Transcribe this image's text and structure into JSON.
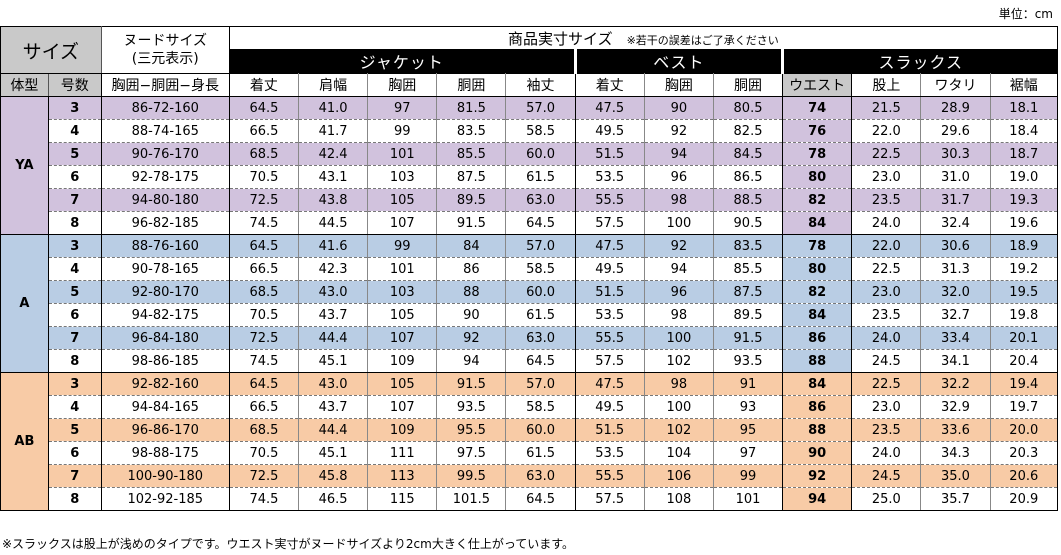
{
  "unit_label": "単位：cm",
  "header": {
    "size_label": "サイズ",
    "nude_line1": "ヌードサイズ",
    "nude_line2": "(三元表示)",
    "main_title": "商品実寸サイズ",
    "main_note": "※若干の誤差はご了承ください",
    "groups": {
      "jacket": "ジャケット",
      "vest": "ベスト",
      "slacks": "スラックス"
    },
    "columns": {
      "taikei": "体型",
      "gousu": "号数",
      "nude": "胸囲−胴囲−身長",
      "j_kitake": "着丈",
      "j_katahaba": "肩幅",
      "j_kyoui": "胸囲",
      "j_doui": "胴囲",
      "j_yuki": "袖丈",
      "v_kitake": "着丈",
      "v_kyoui": "胸囲",
      "v_doui": "胴囲",
      "s_waist": "ウエスト",
      "s_mataue": "股上",
      "s_watari": "ワタリ",
      "s_susohaba": "裾幅"
    }
  },
  "groups": [
    {
      "body_type": "YA",
      "color": "#d1c2dd",
      "rows": [
        {
          "gou": "3",
          "nude": "86-72-160",
          "j": [
            "64.5",
            "41.0",
            "97",
            "81.5",
            "57.0"
          ],
          "v": [
            "47.5",
            "90",
            "80.5"
          ],
          "s": [
            "74",
            "21.5",
            "28.9",
            "18.1"
          ]
        },
        {
          "gou": "4",
          "nude": "88-74-165",
          "j": [
            "66.5",
            "41.7",
            "99",
            "83.5",
            "58.5"
          ],
          "v": [
            "49.5",
            "92",
            "82.5"
          ],
          "s": [
            "76",
            "22.0",
            "29.6",
            "18.4"
          ]
        },
        {
          "gou": "5",
          "nude": "90-76-170",
          "j": [
            "68.5",
            "42.4",
            "101",
            "85.5",
            "60.0"
          ],
          "v": [
            "51.5",
            "94",
            "84.5"
          ],
          "s": [
            "78",
            "22.5",
            "30.3",
            "18.7"
          ]
        },
        {
          "gou": "6",
          "nude": "92-78-175",
          "j": [
            "70.5",
            "43.1",
            "103",
            "87.5",
            "61.5"
          ],
          "v": [
            "53.5",
            "96",
            "86.5"
          ],
          "s": [
            "80",
            "23.0",
            "31.0",
            "19.0"
          ]
        },
        {
          "gou": "7",
          "nude": "94-80-180",
          "j": [
            "72.5",
            "43.8",
            "105",
            "89.5",
            "63.0"
          ],
          "v": [
            "55.5",
            "98",
            "88.5"
          ],
          "s": [
            "82",
            "23.5",
            "31.7",
            "19.3"
          ]
        },
        {
          "gou": "8",
          "nude": "96-82-185",
          "j": [
            "74.5",
            "44.5",
            "107",
            "91.5",
            "64.5"
          ],
          "v": [
            "57.5",
            "100",
            "90.5"
          ],
          "s": [
            "84",
            "24.0",
            "32.4",
            "19.6"
          ]
        }
      ]
    },
    {
      "body_type": "A",
      "color": "#b9cde4",
      "rows": [
        {
          "gou": "3",
          "nude": "88-76-160",
          "j": [
            "64.5",
            "41.6",
            "99",
            "84",
            "57.0"
          ],
          "v": [
            "47.5",
            "92",
            "83.5"
          ],
          "s": [
            "78",
            "22.0",
            "30.6",
            "18.9"
          ]
        },
        {
          "gou": "4",
          "nude": "90-78-165",
          "j": [
            "66.5",
            "42.3",
            "101",
            "86",
            "58.5"
          ],
          "v": [
            "49.5",
            "94",
            "85.5"
          ],
          "s": [
            "80",
            "22.5",
            "31.3",
            "19.2"
          ]
        },
        {
          "gou": "5",
          "nude": "92-80-170",
          "j": [
            "68.5",
            "43.0",
            "103",
            "88",
            "60.0"
          ],
          "v": [
            "51.5",
            "96",
            "87.5"
          ],
          "s": [
            "82",
            "23.0",
            "32.0",
            "19.5"
          ]
        },
        {
          "gou": "6",
          "nude": "94-82-175",
          "j": [
            "70.5",
            "43.7",
            "105",
            "90",
            "61.5"
          ],
          "v": [
            "53.5",
            "98",
            "89.5"
          ],
          "s": [
            "84",
            "23.5",
            "32.7",
            "19.8"
          ]
        },
        {
          "gou": "7",
          "nude": "96-84-180",
          "j": [
            "72.5",
            "44.4",
            "107",
            "92",
            "63.0"
          ],
          "v": [
            "55.5",
            "100",
            "91.5"
          ],
          "s": [
            "86",
            "24.0",
            "33.4",
            "20.1"
          ]
        },
        {
          "gou": "8",
          "nude": "98-86-185",
          "j": [
            "74.5",
            "45.1",
            "109",
            "94",
            "64.5"
          ],
          "v": [
            "57.5",
            "102",
            "93.5"
          ],
          "s": [
            "88",
            "24.5",
            "34.1",
            "20.4"
          ]
        }
      ]
    },
    {
      "body_type": "AB",
      "color": "#f8cba6",
      "rows": [
        {
          "gou": "3",
          "nude": "92-82-160",
          "j": [
            "64.5",
            "43.0",
            "105",
            "91.5",
            "57.0"
          ],
          "v": [
            "47.5",
            "98",
            "91"
          ],
          "s": [
            "84",
            "22.5",
            "32.2",
            "19.4"
          ]
        },
        {
          "gou": "4",
          "nude": "94-84-165",
          "j": [
            "66.5",
            "43.7",
            "107",
            "93.5",
            "58.5"
          ],
          "v": [
            "49.5",
            "100",
            "93"
          ],
          "s": [
            "86",
            "23.0",
            "32.9",
            "19.7"
          ]
        },
        {
          "gou": "5",
          "nude": "96-86-170",
          "j": [
            "68.5",
            "44.4",
            "109",
            "95.5",
            "60.0"
          ],
          "v": [
            "51.5",
            "102",
            "95"
          ],
          "s": [
            "88",
            "23.5",
            "33.6",
            "20.0"
          ]
        },
        {
          "gou": "6",
          "nude": "98-88-175",
          "j": [
            "70.5",
            "45.1",
            "111",
            "97.5",
            "61.5"
          ],
          "v": [
            "53.5",
            "104",
            "97"
          ],
          "s": [
            "90",
            "24.0",
            "34.3",
            "20.3"
          ]
        },
        {
          "gou": "7",
          "nude": "100-90-180",
          "j": [
            "72.5",
            "45.8",
            "113",
            "99.5",
            "63.0"
          ],
          "v": [
            "55.5",
            "106",
            "99"
          ],
          "s": [
            "92",
            "24.5",
            "35.0",
            "20.6"
          ]
        },
        {
          "gou": "8",
          "nude": "102-92-185",
          "j": [
            "74.5",
            "46.5",
            "115",
            "101.5",
            "64.5"
          ],
          "v": [
            "57.5",
            "108",
            "101"
          ],
          "s": [
            "94",
            "25.0",
            "35.7",
            "20.9"
          ]
        }
      ]
    }
  ],
  "footnote": "※スラックスは股上が浅めのタイプです。ウエスト実寸がヌードサイズより2cm大きく仕上がっています。"
}
